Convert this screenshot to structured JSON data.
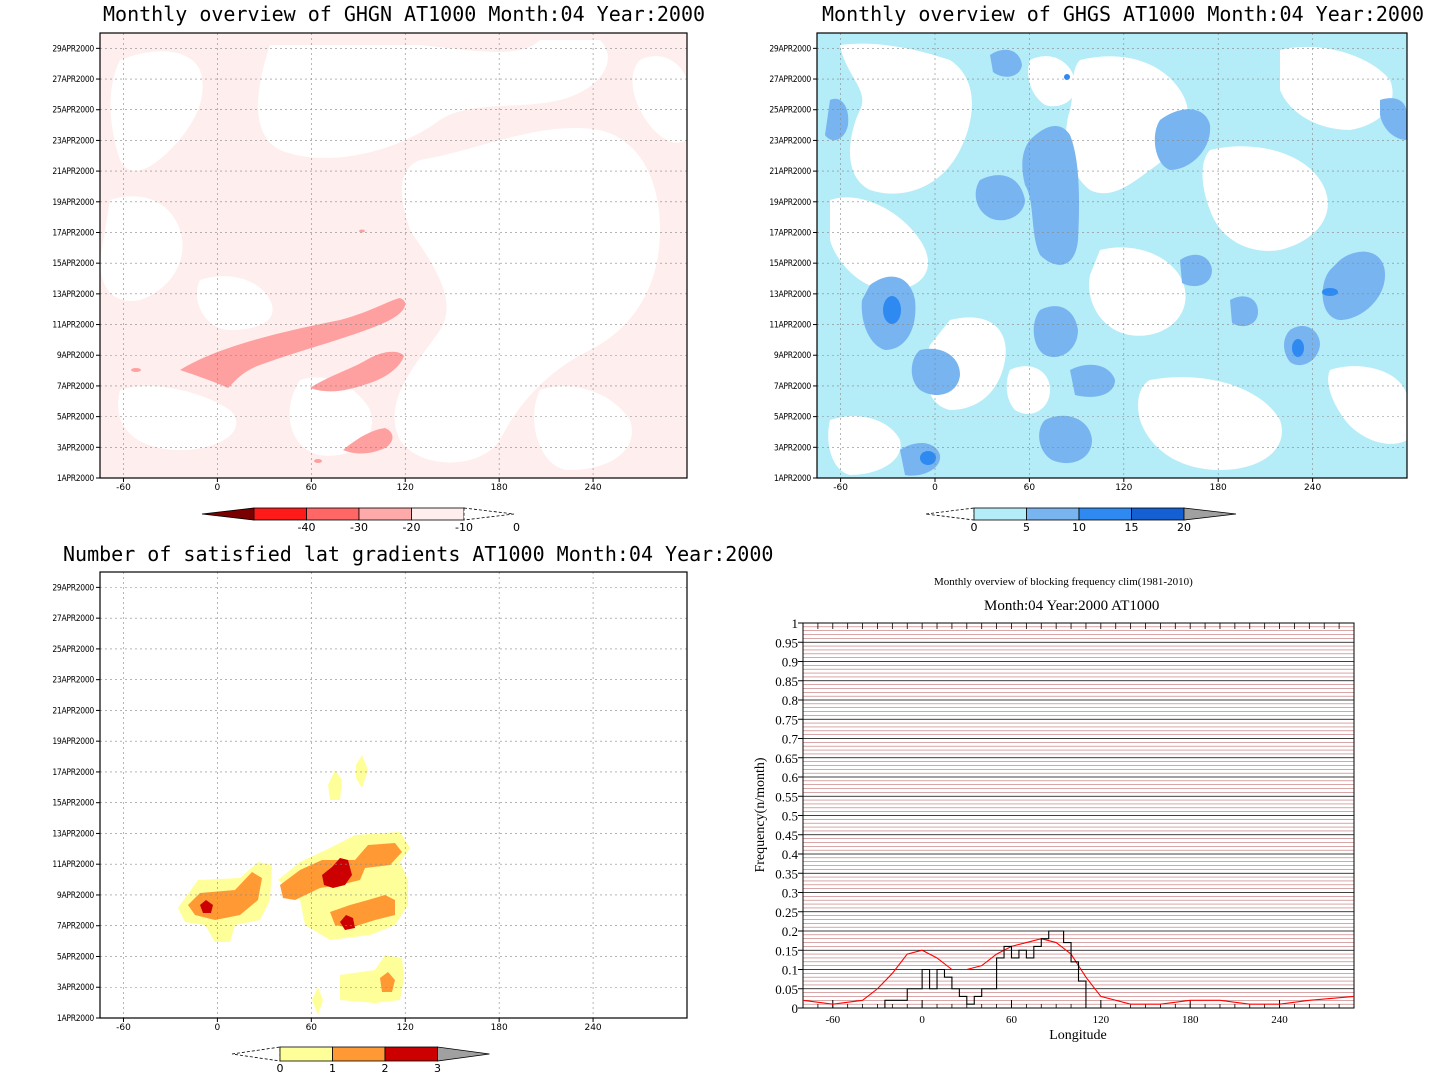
{
  "panels": {
    "ghgn": {
      "title": "Monthly overview of GHGN AT1000 Month:04 Year:2000",
      "xticks": [
        "-60",
        "0",
        "60",
        "120",
        "180",
        "240"
      ],
      "yticks": [
        "1APR2000",
        "3APR2000",
        "5APR2000",
        "7APR2000",
        "9APR2000",
        "11APR2000",
        "13APR2000",
        "15APR2000",
        "17APR2000",
        "19APR2000",
        "21APR2000",
        "23APR2000",
        "25APR2000",
        "27APR2000",
        "29APR2000"
      ],
      "colorbar": {
        "labels": [
          "-40",
          "-30",
          "-20",
          "-10",
          "0"
        ],
        "colors": [
          "#7a0000",
          "#ff1a1a",
          "#ff6666",
          "#ffaaaa",
          "#ffeeee"
        ]
      }
    },
    "ghgs": {
      "title": "Monthly overview of GHGS AT1000 Month:04 Year:2000",
      "xticks": [
        "-60",
        "0",
        "60",
        "120",
        "180",
        "240"
      ],
      "yticks": [
        "1APR2000",
        "3APR2000",
        "5APR2000",
        "7APR2000",
        "9APR2000",
        "11APR2000",
        "13APR2000",
        "15APR2000",
        "17APR2000",
        "19APR2000",
        "21APR2000",
        "23APR2000",
        "25APR2000",
        "27APR2000",
        "29APR2000"
      ],
      "colorbar": {
        "labels": [
          "0",
          "5",
          "10",
          "15",
          "20"
        ],
        "colors": [
          "#b4ecf8",
          "#78b4f0",
          "#2e8af0",
          "#1460d2",
          "#a0a0a0"
        ]
      }
    },
    "gradients": {
      "title": "Number of satisfied lat gradients AT1000 Month:04 Year:2000",
      "xticks": [
        "-60",
        "0",
        "60",
        "120",
        "180",
        "240"
      ],
      "yticks": [
        "1APR2000",
        "3APR2000",
        "5APR2000",
        "7APR2000",
        "9APR2000",
        "11APR2000",
        "13APR2000",
        "15APR2000",
        "17APR2000",
        "19APR2000",
        "21APR2000",
        "23APR2000",
        "25APR2000",
        "27APR2000",
        "29APR2000"
      ],
      "colorbar": {
        "labels": [
          "0",
          "1",
          "2",
          "3"
        ],
        "colors": [
          "#ffff99",
          "#ff9933",
          "#cc0000",
          "#a0a0a0"
        ]
      }
    },
    "frequency": {
      "title_line1": "Monthly overview of blocking frequency clim(1981-2010)",
      "title_line2": "Month:04 Year:2000  AT1000",
      "xlabel": "Longitude",
      "ylabel": "Frequency(n/month)",
      "xticks": [
        "-60",
        "0",
        "60",
        "120",
        "180",
        "240"
      ],
      "yticks": [
        "0",
        "0.05",
        "0.1",
        "0.15",
        "0.2",
        "0.25",
        "0.3",
        "0.35",
        "0.4",
        "0.45",
        "0.5",
        "0.55",
        "0.6",
        "0.65",
        "0.7",
        "0.75",
        "0.8",
        "0.85",
        "0.9",
        "0.95",
        "1"
      ]
    }
  },
  "chart_data": [
    {
      "type": "heatmap",
      "title": "Monthly overview of GHGN AT1000 Month:04 Year:2000",
      "x_range": [
        -75,
        300
      ],
      "y_range": [
        "1APR2000",
        "30APR2000"
      ],
      "levels": [
        -40,
        -30,
        -20,
        -10,
        0
      ],
      "features": [
        {
          "level": "-20..-10",
          "lon": [
            -30,
            110
          ],
          "day": [
            7,
            11
          ]
        },
        {
          "level": "-20..-10",
          "lon": [
            50,
            105
          ],
          "day": [
            6.5,
            8.5
          ]
        },
        {
          "level": "-20..-10",
          "lon": [
            70,
            100
          ],
          "day": [
            2,
            4
          ]
        },
        {
          "level": "-10..0",
          "lon": [
            -75,
            300
          ],
          "day": [
            1,
            30
          ]
        }
      ]
    },
    {
      "type": "heatmap",
      "title": "Monthly overview of GHGS AT1000 Month:04 Year:2000",
      "x_range": [
        -75,
        300
      ],
      "y_range": [
        "1APR2000",
        "30APR2000"
      ],
      "levels": [
        0,
        5,
        10,
        15,
        20
      ],
      "features": [
        {
          "level": "0..5",
          "lon": [
            -75,
            300
          ],
          "day": [
            1,
            30
          ]
        },
        {
          "level": "5..10",
          "lon": [
            -40,
            0
          ],
          "day": [
            10,
            13
          ]
        },
        {
          "level": "5..10",
          "lon": [
            40,
            80
          ],
          "day": [
            17,
            23
          ]
        },
        {
          "level": "10..15",
          "lon": [
            -35,
            -25
          ],
          "day": [
            11,
            13
          ]
        },
        {
          "level": "10..15",
          "lon": [
            210,
            215
          ],
          "day": [
            9,
            10
          ]
        }
      ]
    },
    {
      "type": "heatmap",
      "title": "Number of satisfied lat gradients AT1000 Month:04 Year:2000",
      "x_range": [
        -75,
        300
      ],
      "y_range": [
        "1APR2000",
        "30APR2000"
      ],
      "levels": [
        0,
        1,
        2,
        3
      ],
      "features": [
        {
          "level": "1..2",
          "lon": [
            -30,
            25
          ],
          "day": [
            7,
            10
          ]
        },
        {
          "level": "1..2",
          "lon": [
            30,
            105
          ],
          "day": [
            7,
            13
          ]
        },
        {
          "level": "2..3",
          "lon": [
            -20,
            -10
          ],
          "day": [
            8,
            9
          ]
        },
        {
          "level": "2..3",
          "lon": [
            60,
            75
          ],
          "day": [
            10,
            11
          ]
        },
        {
          "level": "2..3",
          "lon": [
            65,
            75
          ],
          "day": [
            7,
            8
          ]
        },
        {
          "level": "1..2",
          "lon": [
            90,
            100
          ],
          "day": [
            2,
            4
          ]
        }
      ]
    },
    {
      "type": "line",
      "title": "Month:04 Year:2000  AT1000",
      "xlabel": "Longitude",
      "ylabel": "Frequency(n/month)",
      "xlim": [
        -80,
        290
      ],
      "ylim": [
        0,
        1
      ],
      "series": [
        {
          "color": "#ff0000",
          "x": [
            -80,
            -60,
            -40,
            -30,
            -20,
            -10,
            0,
            10,
            20,
            30,
            40,
            50,
            60,
            70,
            80,
            90,
            100,
            110,
            120,
            140,
            160,
            180,
            200,
            220,
            240,
            260,
            290
          ],
          "y": [
            0.02,
            0.01,
            0.02,
            0.05,
            0.09,
            0.14,
            0.15,
            0.13,
            0.1,
            0.1,
            0.11,
            0.14,
            0.16,
            0.17,
            0.18,
            0.17,
            0.14,
            0.08,
            0.03,
            0.01,
            0.01,
            0.02,
            0.02,
            0.01,
            0.01,
            0.02,
            0.03
          ]
        },
        {
          "color": "#000000",
          "x": [
            -40,
            -30,
            -25,
            -15,
            -10,
            -5,
            0,
            5,
            10,
            15,
            20,
            25,
            30,
            35,
            40,
            45,
            50,
            55,
            60,
            65,
            70,
            75,
            80,
            85,
            90,
            95,
            100,
            105,
            110
          ],
          "y": [
            0,
            0,
            0.02,
            0.02,
            0.05,
            0.05,
            0.1,
            0.05,
            0.1,
            0.08,
            0.05,
            0.03,
            0.01,
            0.03,
            0.05,
            0.05,
            0.13,
            0.16,
            0.13,
            0.15,
            0.13,
            0.16,
            0.18,
            0.2,
            0.2,
            0.17,
            0.12,
            0.07,
            0
          ]
        }
      ]
    }
  ]
}
